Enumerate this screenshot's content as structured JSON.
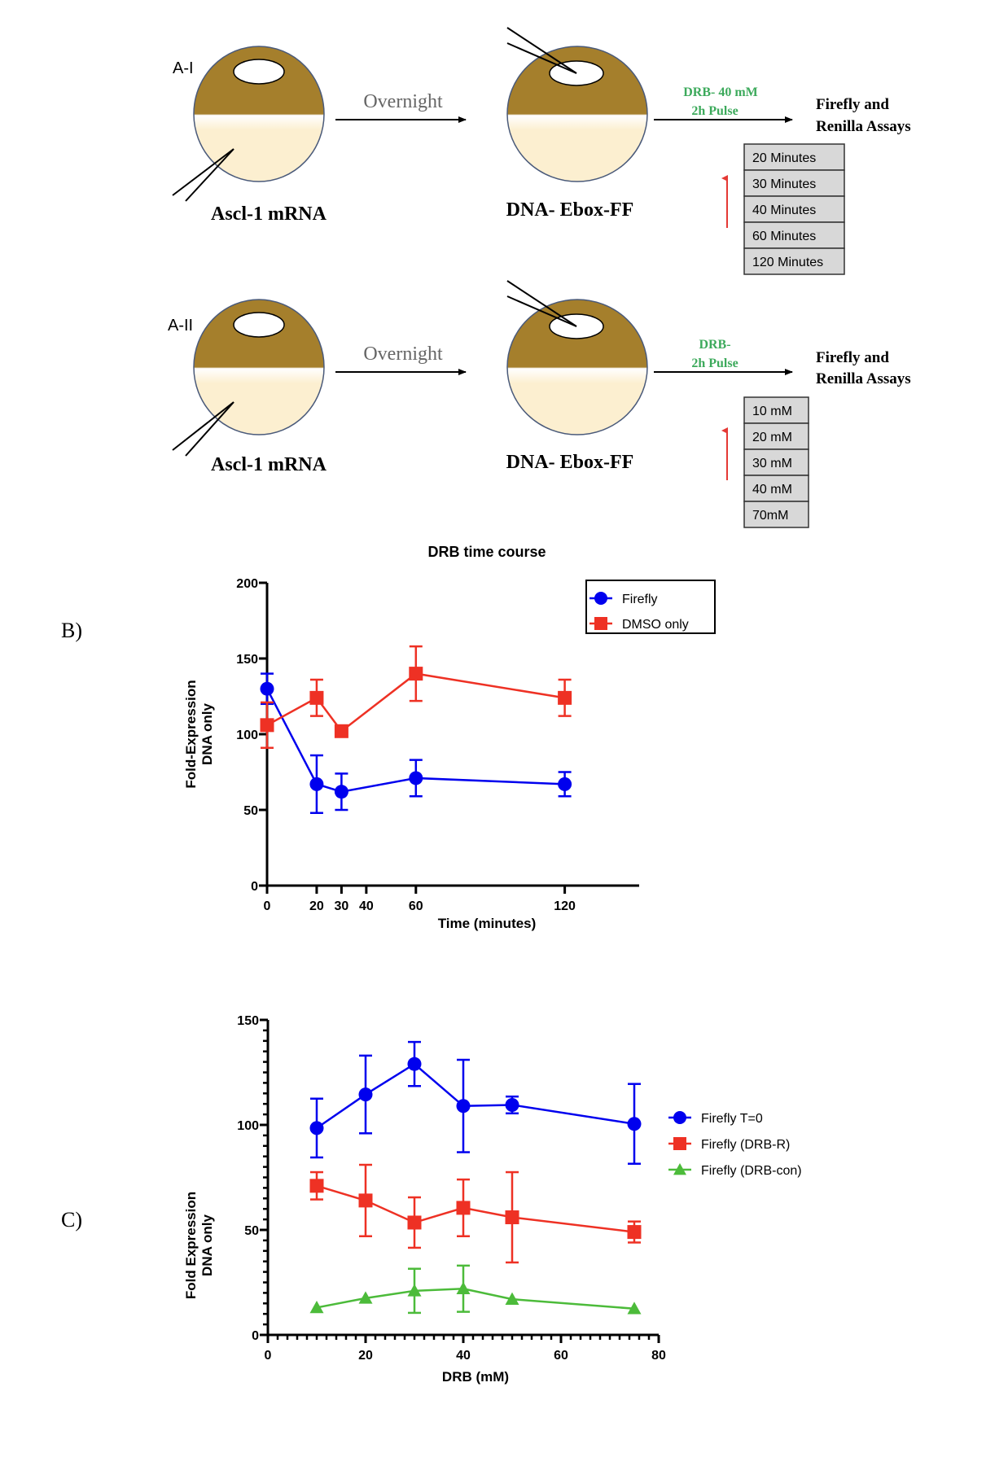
{
  "panel_a": {
    "colors": {
      "animal_pole": "#A57F2C",
      "vegetal_pole": "#FCEFD0",
      "nucleus": "#ffffff",
      "drb_text": "#3DAA5C",
      "red_arrow": "#E53935",
      "box_fill": "#D8D8D8"
    },
    "rows": [
      {
        "label": "A-I",
        "egg1_caption": "Ascl-1 mRNA",
        "arrow1_label": "Overnight",
        "egg2_caption": "DNA- Ebox-FF",
        "treatment_line1": "DRB- 40 mM",
        "treatment_line2": "2h Pulse",
        "result_line1": "Firefly and",
        "result_line2": "Renilla Assays",
        "conditions": [
          "20 Minutes",
          "30 Minutes",
          "40 Minutes",
          "60 Minutes",
          "120 Minutes"
        ]
      },
      {
        "label": "A-II",
        "egg1_caption": "Ascl-1 mRNA",
        "arrow1_label": "Overnight",
        "egg2_caption": "DNA- Ebox-FF",
        "treatment_line1": "DRB-",
        "treatment_line2": "2h Pulse",
        "result_line1": "Firefly and",
        "result_line2": "Renilla Assays",
        "conditions": [
          "10 mM",
          "20 mM",
          "30 mM",
          "40 mM",
          "70mM"
        ]
      }
    ]
  },
  "chart_data": [
    {
      "panel_label": "B)",
      "type": "line",
      "title": "DRB time course",
      "xlabel": "Time (minutes)",
      "ylabel_line1": "Fold-Expression",
      "ylabel_line2": "DNA only",
      "xlim": [
        0,
        150
      ],
      "ylim": [
        0,
        200
      ],
      "xticks": [
        0,
        20,
        30,
        40,
        60,
        120
      ],
      "yticks": [
        0,
        50,
        100,
        150,
        200
      ],
      "grid": false,
      "legend_position": "top-right",
      "series": [
        {
          "name": "Firefly",
          "color": "#0000EE",
          "marker": "circle",
          "x": [
            0,
            20,
            30,
            60,
            120
          ],
          "y": [
            130,
            67,
            62,
            71,
            67
          ],
          "err": [
            10,
            19,
            12,
            12,
            8
          ]
        },
        {
          "name": "DMSO only",
          "color": "#EE3124",
          "marker": "square",
          "x": [
            0,
            20,
            30,
            60,
            120
          ],
          "y": [
            106,
            124,
            102,
            140,
            124
          ],
          "err": [
            15,
            12,
            0,
            18,
            12
          ]
        }
      ]
    },
    {
      "panel_label": "C)",
      "type": "line",
      "title": "",
      "xlabel": "DRB (mM)",
      "ylabel_line1": "Fold Expression",
      "ylabel_line2": "DNA only",
      "xlim": [
        0,
        80
      ],
      "ylim": [
        0,
        150
      ],
      "xticks": [
        0,
        20,
        40,
        60,
        80
      ],
      "yticks": [
        0,
        50,
        100,
        150
      ],
      "x_minor_step": 2,
      "y_minor_step": 5,
      "grid": false,
      "legend_position": "right",
      "series": [
        {
          "name": "Firefly T=0",
          "color": "#0000EE",
          "marker": "circle",
          "x": [
            10,
            20,
            30,
            40,
            50,
            75
          ],
          "y": [
            98.5,
            114.5,
            129,
            109,
            109.5,
            100.5
          ],
          "err": [
            14,
            18.5,
            10.5,
            22,
            4,
            19
          ]
        },
        {
          "name": "Firefly (DRB-R)",
          "color": "#EE3124",
          "marker": "square",
          "x": [
            10,
            20,
            30,
            40,
            50,
            75
          ],
          "y": [
            71,
            64,
            53.5,
            60.5,
            56,
            49
          ],
          "err": [
            6.5,
            17,
            12,
            13.5,
            21.5,
            5
          ]
        },
        {
          "name": "Firefly (DRB-con)",
          "color": "#4CBB3A",
          "marker": "triangle",
          "x": [
            10,
            20,
            30,
            40,
            50,
            75
          ],
          "y": [
            13,
            17.5,
            21,
            22,
            17,
            12.5
          ],
          "err": [
            0,
            0,
            10.5,
            11,
            0,
            0
          ]
        }
      ]
    }
  ]
}
